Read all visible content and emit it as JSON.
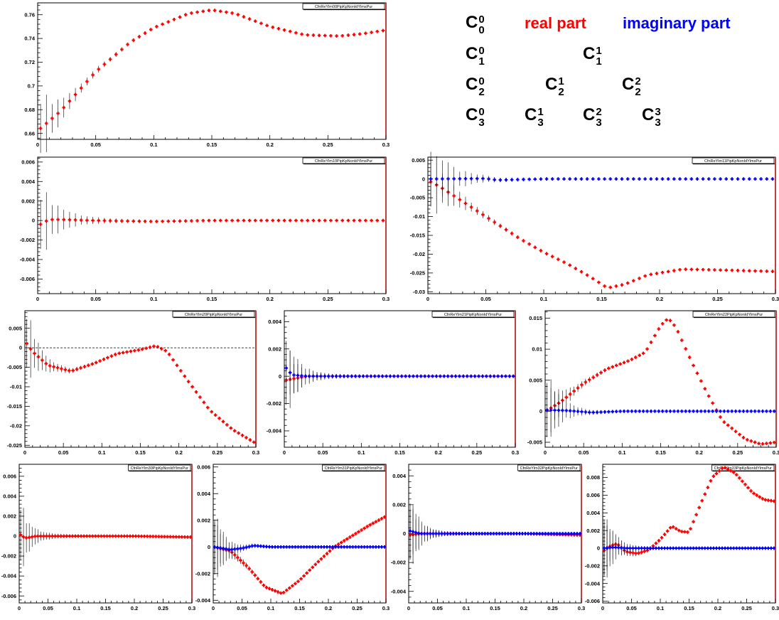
{
  "colors": {
    "real": "#ff0000",
    "imaginary": "#0000ff",
    "axis": "#000000",
    "frame_side": "#aa0000"
  },
  "legend": {
    "real_label": "real part",
    "imaginary_label": "imaginary part",
    "components": [
      {
        "base": "C",
        "sup": "0",
        "sub": "0"
      },
      {
        "base": "C",
        "sup": "0",
        "sub": "1"
      },
      {
        "base": "C",
        "sup": "1",
        "sub": "1"
      },
      {
        "base": "C",
        "sup": "0",
        "sub": "2"
      },
      {
        "base": "C",
        "sup": "1",
        "sub": "2"
      },
      {
        "base": "C",
        "sup": "2",
        "sub": "2"
      },
      {
        "base": "C",
        "sup": "0",
        "sub": "3"
      },
      {
        "base": "C",
        "sup": "1",
        "sub": "3"
      },
      {
        "base": "C",
        "sup": "2",
        "sub": "3"
      },
      {
        "base": "C",
        "sup": "3",
        "sub": "3"
      }
    ]
  },
  "chart_data": [
    {
      "id": "c00",
      "type": "scatter",
      "title_box": "CfnReYlm00PipKpNonIdYlmsPur",
      "xlim": [
        0,
        0.3
      ],
      "ylim": [
        0.655,
        0.77
      ],
      "x_ticks": [
        "0",
        "0.05",
        "0.1",
        "0.15",
        "0.2",
        "0.25",
        "0.3"
      ],
      "y_ticks": [
        "0.66",
        "0.68",
        "0.7",
        "0.72",
        "0.74",
        "0.76"
      ],
      "y_tick_values": [
        0.66,
        0.68,
        0.7,
        0.72,
        0.74,
        0.76
      ],
      "zero_line": false,
      "series": [
        {
          "part": "real",
          "key": [
            [
              0.001,
              0.663
            ],
            [
              0.02,
              0.679
            ],
            [
              0.05,
              0.712
            ],
            [
              0.08,
              0.737
            ],
            [
              0.1,
              0.749
            ],
            [
              0.13,
              0.761
            ],
            [
              0.15,
              0.764
            ],
            [
              0.17,
              0.761
            ],
            [
              0.2,
              0.75
            ],
            [
              0.23,
              0.743
            ],
            [
              0.26,
              0.742
            ],
            [
              0.28,
              0.744
            ],
            [
              0.3,
              0.747
            ]
          ]
        }
      ]
    },
    {
      "id": "c01",
      "type": "scatter",
      "title_box": "CfnReYlm10PipKpNonIdYlmsPur",
      "xlim": [
        0,
        0.3
      ],
      "ylim": [
        -0.0075,
        0.0065
      ],
      "x_ticks": [
        "0",
        "0.05",
        "0.1",
        "0.15",
        "0.2",
        "0.25",
        "0.3"
      ],
      "y_ticks": [
        "-0.006",
        "-0.004",
        "-0.002",
        "0",
        "0.002",
        "0.004",
        "0.006"
      ],
      "y_tick_values": [
        -0.006,
        -0.004,
        -0.002,
        0,
        0.002,
        0.004,
        0.006
      ],
      "zero_line": false,
      "series": [
        {
          "part": "real",
          "key": [
            [
              0.001,
              -0.0005
            ],
            [
              0.005,
              -0.0002
            ],
            [
              0.01,
              0.0001
            ],
            [
              0.02,
              0.0001
            ],
            [
              0.05,
              0.0
            ],
            [
              0.1,
              -0.0001
            ],
            [
              0.15,
              0.0
            ],
            [
              0.2,
              0.0
            ],
            [
              0.25,
              0.0
            ],
            [
              0.3,
              0.0
            ]
          ]
        }
      ]
    },
    {
      "id": "c11",
      "type": "scatter",
      "title_box": "CfnReYlm11PipKpNonIdYlmsPur",
      "xlim": [
        0,
        0.3
      ],
      "ylim": [
        -0.0305,
        0.0058
      ],
      "x_ticks": [
        "0",
        "0.05",
        "0.1",
        "0.15",
        "0.2",
        "0.25",
        "0.3"
      ],
      "y_ticks": [
        "-0.03",
        "-0.025",
        "-0.02",
        "-0.015",
        "-0.01",
        "-0.005",
        "0",
        "0.005"
      ],
      "y_tick_values": [
        -0.03,
        -0.025,
        -0.02,
        -0.015,
        -0.01,
        -0.005,
        0,
        0.005
      ],
      "zero_line": false,
      "series": [
        {
          "part": "real",
          "key": [
            [
              0.001,
              -0.0005
            ],
            [
              0.01,
              -0.002
            ],
            [
              0.02,
              -0.004
            ],
            [
              0.05,
              -0.01
            ],
            [
              0.08,
              -0.016
            ],
            [
              0.1,
              -0.0195
            ],
            [
              0.12,
              -0.0225
            ],
            [
              0.14,
              -0.026
            ],
            [
              0.155,
              -0.029
            ],
            [
              0.17,
              -0.028
            ],
            [
              0.19,
              -0.0255
            ],
            [
              0.22,
              -0.024
            ],
            [
              0.25,
              -0.0242
            ],
            [
              0.3,
              -0.0246
            ]
          ]
        },
        {
          "part": "imaginary",
          "key": [
            [
              0.001,
              0.0
            ],
            [
              0.05,
              0.0001
            ],
            [
              0.06,
              -0.0003
            ],
            [
              0.1,
              0.0
            ],
            [
              0.2,
              0.0
            ],
            [
              0.3,
              0.0
            ]
          ]
        }
      ]
    },
    {
      "id": "c02",
      "type": "scatter",
      "title_box": "CfnReYlm20PipKpNonIdYlmsPur",
      "xlim": [
        0,
        0.3
      ],
      "ylim": [
        -0.0255,
        0.0095
      ],
      "x_ticks": [
        "0",
        "0.05",
        "0.1",
        "0.15",
        "0.2",
        "0.25",
        "0.3"
      ],
      "y_ticks": [
        "-0.025",
        "-0.02",
        "-0.015",
        "-0.01",
        "-0.005",
        "0",
        "0.005"
      ],
      "y_tick_values": [
        -0.025,
        -0.02,
        -0.015,
        -0.01,
        -0.005,
        0,
        0.005
      ],
      "zero_line": true,
      "series": [
        {
          "part": "real",
          "key": [
            [
              0.001,
              0.0015
            ],
            [
              0.01,
              -0.001
            ],
            [
              0.03,
              -0.0045
            ],
            [
              0.06,
              -0.006
            ],
            [
              0.09,
              -0.004
            ],
            [
              0.12,
              -0.0015
            ],
            [
              0.15,
              -0.0005
            ],
            [
              0.17,
              0.0005
            ],
            [
              0.185,
              -0.001
            ],
            [
              0.21,
              -0.008
            ],
            [
              0.24,
              -0.016
            ],
            [
              0.27,
              -0.021
            ],
            [
              0.3,
              -0.0245
            ]
          ]
        }
      ]
    },
    {
      "id": "c12",
      "type": "scatter",
      "title_box": "CfnReYlm21PipKpNonIdYlmsPur",
      "xlim": [
        0,
        0.3
      ],
      "ylim": [
        -0.0052,
        0.0048
      ],
      "x_ticks": [
        "0",
        "0.05",
        "0.1",
        "0.15",
        "0.2",
        "0.25",
        "0.3"
      ],
      "y_ticks": [
        "-0.004",
        "-0.002",
        "0",
        "0.002",
        "0.004"
      ],
      "y_tick_values": [
        -0.004,
        -0.002,
        0,
        0.002,
        0.004
      ],
      "zero_line": false,
      "series": [
        {
          "part": "real",
          "key": [
            [
              0.001,
              -0.0003
            ],
            [
              0.01,
              -0.0002
            ],
            [
              0.03,
              0.0
            ],
            [
              0.1,
              0.0
            ],
            [
              0.2,
              0.0
            ],
            [
              0.3,
              0.0
            ]
          ]
        },
        {
          "part": "imaginary",
          "key": [
            [
              0.001,
              0.0007
            ],
            [
              0.01,
              0.0001
            ],
            [
              0.03,
              0.0
            ],
            [
              0.1,
              0.0
            ],
            [
              0.2,
              0.0
            ],
            [
              0.3,
              0.0
            ]
          ]
        }
      ]
    },
    {
      "id": "c22",
      "type": "scatter",
      "title_box": "CfnReYlm22PipKpNonIdYlmsPur",
      "xlim": [
        0,
        0.3
      ],
      "ylim": [
        -0.0058,
        0.0162
      ],
      "x_ticks": [
        "0",
        "0.05",
        "0.1",
        "0.15",
        "0.2",
        "0.25",
        "0.3"
      ],
      "y_ticks": [
        "-0.005",
        "0",
        "0.005",
        "0.01",
        "0.015"
      ],
      "y_tick_values": [
        -0.005,
        0,
        0.005,
        0.01,
        0.015
      ],
      "zero_line": false,
      "series": [
        {
          "part": "real",
          "key": [
            [
              0.001,
              0.0
            ],
            [
              0.02,
              0.0015
            ],
            [
              0.05,
              0.0045
            ],
            [
              0.08,
              0.0068
            ],
            [
              0.11,
              0.0082
            ],
            [
              0.13,
              0.0095
            ],
            [
              0.15,
              0.0138
            ],
            [
              0.16,
              0.015
            ],
            [
              0.17,
              0.0135
            ],
            [
              0.19,
              0.008
            ],
            [
              0.21,
              0.003
            ],
            [
              0.23,
              -0.0015
            ],
            [
              0.26,
              -0.0045
            ],
            [
              0.28,
              -0.0053
            ],
            [
              0.3,
              -0.005
            ]
          ]
        },
        {
          "part": "imaginary",
          "key": [
            [
              0.001,
              0.0002
            ],
            [
              0.03,
              0.0001
            ],
            [
              0.06,
              -0.0002
            ],
            [
              0.1,
              0.0
            ],
            [
              0.2,
              0.0
            ],
            [
              0.3,
              0.0
            ]
          ]
        }
      ]
    },
    {
      "id": "c03",
      "type": "scatter",
      "title_box": "CfnReYlm30PipKpNonIdYlmsPur",
      "xlim": [
        0,
        0.3
      ],
      "ylim": [
        -0.0067,
        0.0072
      ],
      "x_ticks": [
        "0",
        "0.05",
        "0.1",
        "0.15",
        "0.2",
        "0.25",
        "0.3"
      ],
      "y_ticks": [
        "-0.006",
        "-0.004",
        "-0.002",
        "0",
        "0.002",
        "0.004",
        "0.006"
      ],
      "y_tick_values": [
        -0.006,
        -0.004,
        -0.002,
        0,
        0.002,
        0.004,
        0.006
      ],
      "zero_line": false,
      "series": [
        {
          "part": "real",
          "key": [
            [
              0.001,
              0.0002
            ],
            [
              0.01,
              -0.0002
            ],
            [
              0.03,
              0.0
            ],
            [
              0.1,
              0.0
            ],
            [
              0.2,
              0.0
            ],
            [
              0.3,
              -0.0001
            ]
          ]
        }
      ]
    },
    {
      "id": "c13",
      "type": "scatter",
      "title_box": "CfnReYlm31PipKpNonIdYlmsPur",
      "xlim": [
        0,
        0.3
      ],
      "ylim": [
        -0.0042,
        0.0062
      ],
      "x_ticks": [
        "0",
        "0.05",
        "0.1",
        "0.15",
        "0.2",
        "0.25",
        "0.3"
      ],
      "y_ticks": [
        "-0.004",
        "-0.002",
        "0",
        "0.002",
        "0.004",
        "0.006"
      ],
      "y_tick_values": [
        -0.004,
        -0.002,
        0,
        0.002,
        0.004,
        0.006
      ],
      "zero_line": false,
      "series": [
        {
          "part": "real",
          "key": [
            [
              0.001,
              0.0
            ],
            [
              0.03,
              -0.0003
            ],
            [
              0.06,
              -0.0015
            ],
            [
              0.09,
              -0.003
            ],
            [
              0.12,
              -0.0035
            ],
            [
              0.15,
              -0.0025
            ],
            [
              0.18,
              -0.0012
            ],
            [
              0.21,
              0.0
            ],
            [
              0.24,
              0.0008
            ],
            [
              0.27,
              0.0016
            ],
            [
              0.3,
              0.0023
            ]
          ]
        },
        {
          "part": "imaginary",
          "key": [
            [
              0.001,
              0.0
            ],
            [
              0.03,
              -0.0002
            ],
            [
              0.05,
              -0.0001
            ],
            [
              0.07,
              0.0001
            ],
            [
              0.1,
              0.0
            ],
            [
              0.2,
              0.0
            ],
            [
              0.3,
              0.0
            ]
          ]
        }
      ]
    },
    {
      "id": "c23",
      "type": "scatter",
      "title_box": "CfnReYlm32PipKpNonIdYlmsPur",
      "xlim": [
        0,
        0.3
      ],
      "ylim": [
        -0.0048,
        0.0048
      ],
      "x_ticks": [
        "0",
        "0.05",
        "0.1",
        "0.15",
        "0.2",
        "0.25",
        "0.3"
      ],
      "y_ticks": [
        "-0.004",
        "-0.002",
        "0",
        "0.002",
        "0.004"
      ],
      "y_tick_values": [
        -0.004,
        -0.002,
        0,
        0.002,
        0.004
      ],
      "zero_line": false,
      "series": [
        {
          "part": "real",
          "key": [
            [
              0.001,
              -0.0001
            ],
            [
              0.02,
              0.0
            ],
            [
              0.1,
              0.0
            ],
            [
              0.2,
              0.0
            ],
            [
              0.3,
              -0.0001
            ]
          ]
        },
        {
          "part": "imaginary",
          "key": [
            [
              0.001,
              0.0002
            ],
            [
              0.02,
              0.0
            ],
            [
              0.1,
              0.0
            ],
            [
              0.2,
              0.0
            ],
            [
              0.3,
              0.0
            ]
          ]
        }
      ]
    },
    {
      "id": "c33",
      "type": "scatter",
      "title_box": "CfnReYlm33PipKpNonIdYlmsPur",
      "xlim": [
        0,
        0.3
      ],
      "ylim": [
        -0.0062,
        0.0095
      ],
      "x_ticks": [
        "0",
        "0.05",
        "0.1",
        "0.15",
        "0.2",
        "0.25",
        "0.3"
      ],
      "y_ticks": [
        "-0.006",
        "-0.004",
        "-0.002",
        "0",
        "0.002",
        "0.004",
        "0.006",
        "0.008"
      ],
      "y_tick_values": [
        -0.006,
        -0.004,
        -0.002,
        0,
        0.002,
        0.004,
        0.006,
        0.008
      ],
      "zero_line": false,
      "series": [
        {
          "part": "real",
          "key": [
            [
              0.001,
              -0.0003
            ],
            [
              0.015,
              0.0003
            ],
            [
              0.025,
              0.0005
            ],
            [
              0.04,
              -0.0004
            ],
            [
              0.06,
              -0.0006
            ],
            [
              0.08,
              -0.0002
            ],
            [
              0.1,
              0.001
            ],
            [
              0.12,
              0.0025
            ],
            [
              0.135,
              0.0019
            ],
            [
              0.15,
              0.0018
            ],
            [
              0.17,
              0.005
            ],
            [
              0.19,
              0.008
            ],
            [
              0.21,
              0.0092
            ],
            [
              0.23,
              0.0085
            ],
            [
              0.26,
              0.0063
            ],
            [
              0.28,
              0.0055
            ],
            [
              0.3,
              0.0053
            ]
          ]
        },
        {
          "part": "imaginary",
          "key": [
            [
              0.001,
              0.0
            ],
            [
              0.02,
              0.0001
            ],
            [
              0.04,
              0.0
            ],
            [
              0.1,
              0.0
            ],
            [
              0.2,
              0.0
            ],
            [
              0.3,
              0.0
            ]
          ]
        }
      ]
    }
  ]
}
